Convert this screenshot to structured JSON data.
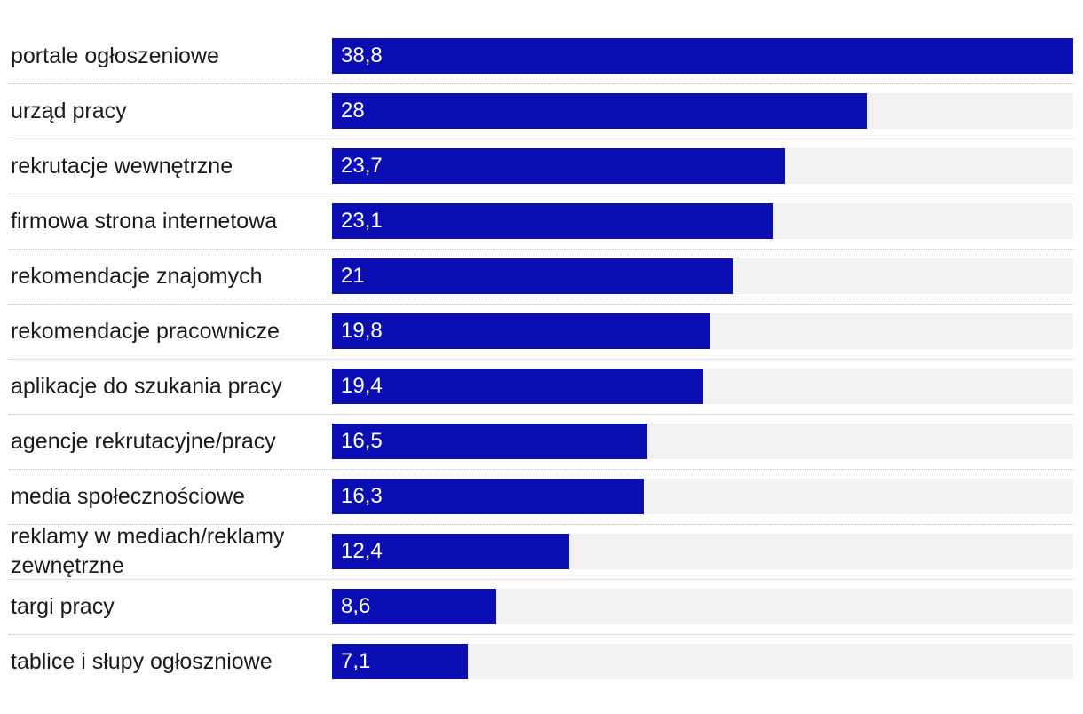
{
  "chart_data": {
    "type": "bar",
    "orientation": "horizontal",
    "categories": [
      "portale ogłoszeniowe",
      "urząd pracy",
      "rekrutacje wewnętrzne",
      "firmowa strona internetowa",
      "rekomendacje znajomych",
      "rekomendacje pracownicze",
      "aplikacje do szukania pracy",
      "agencje rekrutacyjne/pracy",
      "media społecznościowe",
      "reklamy w mediach/reklamy zewnętrzne",
      "targi pracy",
      "tablice i słupy ogłoszniowe"
    ],
    "values": [
      38.8,
      28,
      23.7,
      23.1,
      21,
      19.8,
      19.4,
      16.5,
      16.3,
      12.4,
      8.6,
      7.1
    ],
    "value_labels": [
      "38,8",
      "28",
      "23,7",
      "23,1",
      "21",
      "19,8",
      "19,4",
      "16,5",
      "16,3",
      "12,4",
      "8,6",
      "7,1"
    ],
    "xlim": [
      0,
      38.8
    ],
    "grid": false,
    "colors": {
      "bar": "#0b0fb3",
      "track": "#f2f2f2",
      "value_text": "#ffffff",
      "label_text": "#1a1a1a"
    }
  }
}
